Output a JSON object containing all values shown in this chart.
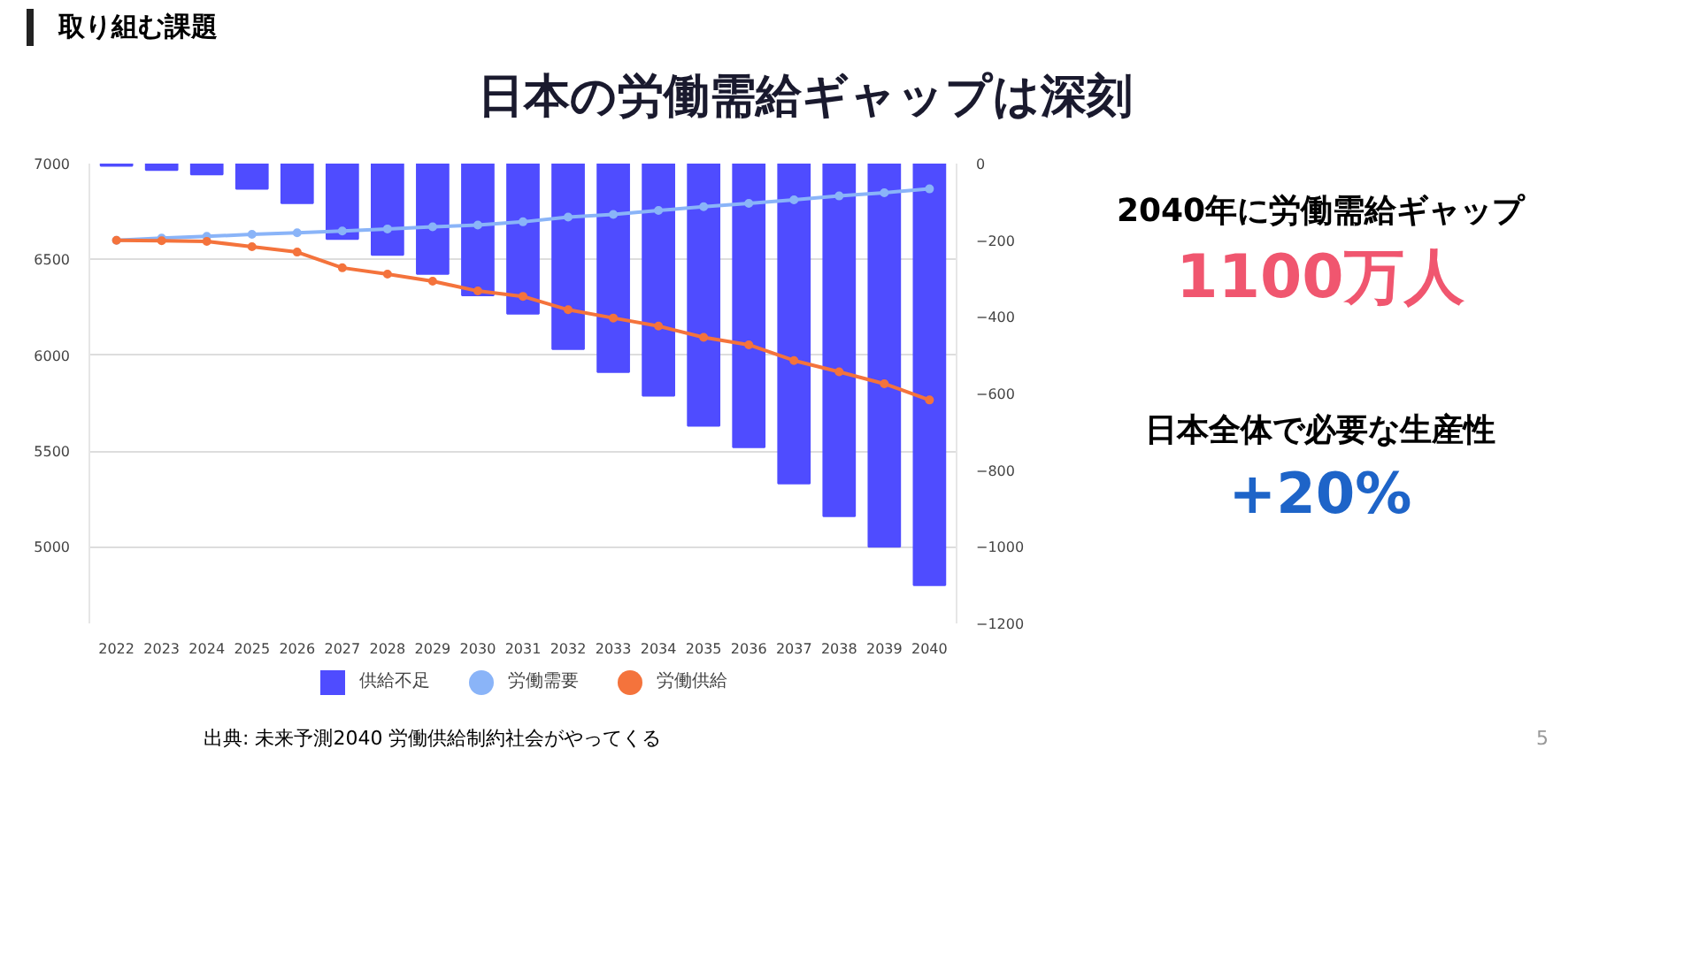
{
  "chart_data": {
    "type": "bar",
    "title": "日本の労働需給ギャップは深刻",
    "categories": [
      "2022",
      "2023",
      "2024",
      "2025",
      "2026",
      "2027",
      "2028",
      "2029",
      "2030",
      "2031",
      "2032",
      "2033",
      "2034",
      "2035",
      "2036",
      "2037",
      "2038",
      "2039",
      "2040"
    ],
    "series": [
      {
        "name": "供給不足",
        "axis": "y2",
        "color": "#4f4cff",
        "values": [
          -6,
          -17,
          -28,
          -66,
          -103,
          -197,
          -238,
          -288,
          -344,
          -392,
          -484,
          -544,
          -606,
          -684,
          -740,
          -835,
          -920,
          -1000,
          -1100
        ]
      },
      {
        "name": "労働需要",
        "type": "line",
        "color": "#8ab4f8",
        "values": [
          6600,
          6611,
          6620,
          6631,
          6639,
          6648,
          6659,
          6670,
          6679,
          6696,
          6721,
          6735,
          6755,
          6775,
          6792,
          6811,
          6831,
          6848,
          6868
        ]
      },
      {
        "name": "労働供給",
        "type": "line",
        "color": "#f4733c",
        "values": [
          6600,
          6597,
          6594,
          6566,
          6538,
          6456,
          6423,
          6386,
          6335,
          6307,
          6237,
          6194,
          6152,
          6093,
          6054,
          5972,
          5913,
          5851,
          5766
        ]
      }
    ],
    "ylim": [
      4600,
      7000
    ],
    "yticks": [
      5000,
      5500,
      6000,
      6500,
      7000
    ],
    "y2lim": [
      -1200,
      0
    ],
    "y2ticks": [
      -1200,
      -1000,
      -800,
      -600,
      -400,
      -200,
      0
    ],
    "grid": "y",
    "legend": "bottom",
    "marker": "circle",
    "annotations": [
      "取り組む課題",
      "2040年に労働需給ギャップ",
      "1100万人",
      "日本全体で必要な生産性",
      "+20%",
      "出典: 未来予測2040 労働供給制約社会がやってくる",
      "5"
    ]
  }
}
